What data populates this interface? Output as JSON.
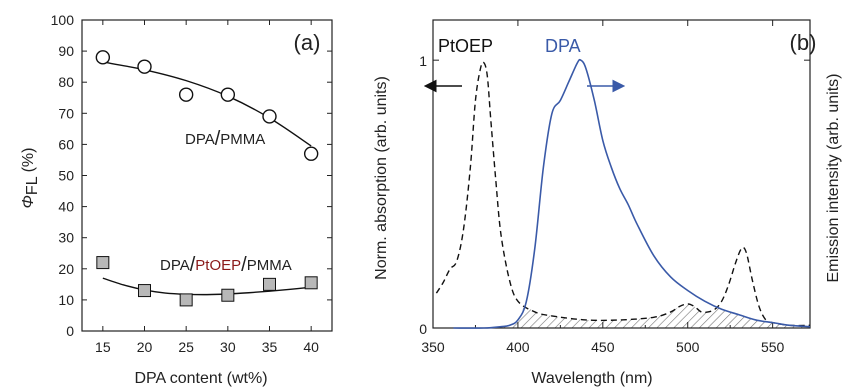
{
  "chart_data": [
    {
      "type": "scatter",
      "panel_label": "(a)",
      "xlabel": "DPA content (wt%)",
      "ylabel_symbol": "Φ",
      "ylabel_sub": "FL",
      "ylabel_unit": "(%)",
      "xlim": [
        12.5,
        42.5
      ],
      "ylim": [
        0,
        100
      ],
      "xticks": [
        "15",
        "20",
        "25",
        "30",
        "35",
        "40"
      ],
      "xtick_values": [
        15,
        20,
        25,
        30,
        35,
        40
      ],
      "yticks": [
        "0",
        "10",
        "20",
        "30",
        "40",
        "50",
        "60",
        "70",
        "80",
        "90",
        "100"
      ],
      "ytick_values": [
        0,
        10,
        20,
        30,
        40,
        50,
        60,
        70,
        80,
        90,
        100
      ],
      "series": [
        {
          "label_parts": [
            "DPA",
            "/",
            "PMMA"
          ],
          "marker": "open-circle",
          "x": [
            15,
            20,
            25,
            30,
            35,
            40
          ],
          "y": [
            88,
            85,
            76,
            76,
            69,
            57
          ],
          "fit_x": [
            15,
            20,
            25,
            30,
            35,
            40
          ],
          "fit_y": [
            86.5,
            84,
            80.5,
            75.5,
            68.5,
            59.5
          ]
        },
        {
          "label_parts": [
            "DPA",
            "/",
            "PtOEP",
            "/",
            "PMMA"
          ],
          "marker": "gray-square",
          "x": [
            15,
            20,
            25,
            30,
            35,
            40
          ],
          "y": [
            22,
            13,
            10,
            11.5,
            15,
            15.5
          ],
          "fit_x": [
            15,
            17.5,
            20,
            22.5,
            25,
            27.5,
            30,
            32.5,
            35,
            37.5,
            40
          ],
          "fit_y": [
            17,
            14.8,
            13.2,
            12.2,
            11.8,
            11.7,
            11.9,
            12.3,
            12.8,
            13.4,
            14.1
          ]
        }
      ],
      "colors": {
        "highlight": "#8b1a1a"
      }
    },
    {
      "type": "line",
      "panel_label": "(b)",
      "xlabel": "Wavelength (nm)",
      "ylabel_left": "Norm. absorption (arb. units)",
      "ylabel_right": "Emission intensity (arb. units)",
      "xlim": [
        350,
        572
      ],
      "ylim": [
        0,
        1.15
      ],
      "xticks": [
        "350",
        "400",
        "450",
        "500",
        "550"
      ],
      "xtick_values": [
        350,
        400,
        450,
        500,
        550
      ],
      "yticks": [
        "0",
        "1"
      ],
      "ytick_values": [
        0,
        1
      ],
      "series": [
        {
          "name": "PtOEP",
          "style": "dashed",
          "color": "#111111",
          "arrow": "left",
          "x": [
            352,
            356,
            360,
            364,
            368,
            372,
            375,
            378,
            380,
            382,
            384,
            387,
            390,
            395,
            400,
            410,
            420,
            440,
            460,
            480,
            490,
            495,
            500,
            504,
            508,
            512,
            516,
            520,
            524,
            528,
            531,
            533,
            535,
            538,
            542,
            546,
            550,
            560,
            572
          ],
          "y": [
            0.13,
            0.17,
            0.22,
            0.25,
            0.37,
            0.6,
            0.85,
            0.97,
            0.99,
            0.94,
            0.78,
            0.55,
            0.35,
            0.18,
            0.1,
            0.06,
            0.045,
            0.03,
            0.03,
            0.04,
            0.06,
            0.08,
            0.09,
            0.08,
            0.06,
            0.06,
            0.07,
            0.1,
            0.16,
            0.24,
            0.29,
            0.3,
            0.27,
            0.18,
            0.08,
            0.03,
            0.02,
            0.01,
            0.01
          ]
        },
        {
          "name": "DPA",
          "style": "solid",
          "color": "#3a5aa8",
          "arrow": "right",
          "x": [
            362,
            380,
            390,
            395,
            400,
            405,
            410,
            415,
            420,
            425,
            430,
            435,
            437,
            440,
            445,
            450,
            455,
            460,
            465,
            470,
            480,
            490,
            500,
            510,
            520,
            530,
            540,
            550,
            560,
            572
          ],
          "y": [
            0,
            0,
            0.005,
            0.01,
            0.03,
            0.1,
            0.3,
            0.6,
            0.8,
            0.85,
            0.92,
            0.99,
            1.0,
            0.97,
            0.85,
            0.7,
            0.6,
            0.52,
            0.46,
            0.39,
            0.27,
            0.19,
            0.14,
            0.1,
            0.07,
            0.05,
            0.03,
            0.02,
            0.01,
            0.005
          ]
        }
      ],
      "overlap": "hatched area under both curves (spectral overlap)"
    }
  ]
}
